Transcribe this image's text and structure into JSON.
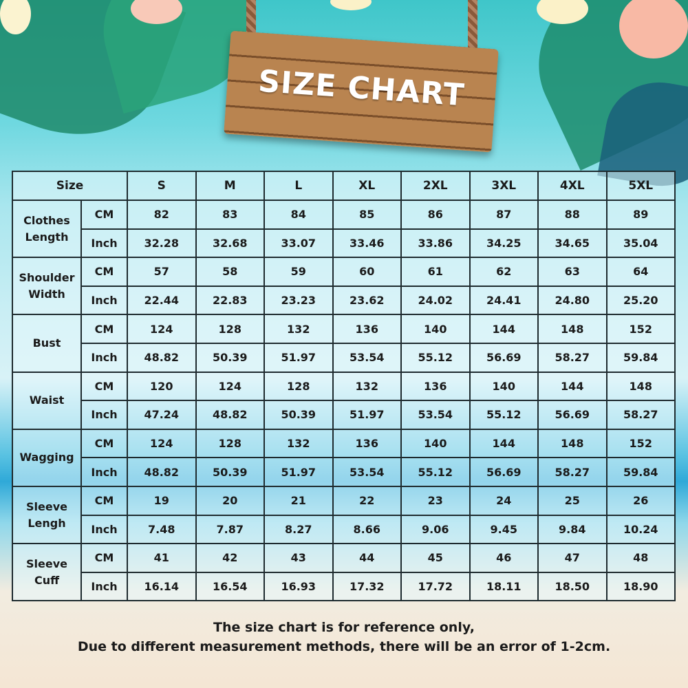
{
  "title": "SIZE CHART",
  "size_label": "Size",
  "sizes": [
    "S",
    "M",
    "L",
    "XL",
    "2XL",
    "3XL",
    "4XL",
    "5XL"
  ],
  "units": {
    "cm": "CM",
    "inch": "Inch"
  },
  "rows": [
    {
      "label": [
        "Clothes",
        "Length"
      ],
      "cm": [
        "82",
        "83",
        "84",
        "85",
        "86",
        "87",
        "88",
        "89"
      ],
      "inch": [
        "32.28",
        "32.68",
        "33.07",
        "33.46",
        "33.86",
        "34.25",
        "34.65",
        "35.04"
      ]
    },
    {
      "label": [
        "Shoulder",
        "Width"
      ],
      "cm": [
        "57",
        "58",
        "59",
        "60",
        "61",
        "62",
        "63",
        "64"
      ],
      "inch": [
        "22.44",
        "22.83",
        "23.23",
        "23.62",
        "24.02",
        "24.41",
        "24.80",
        "25.20"
      ]
    },
    {
      "label": [
        "Bust"
      ],
      "cm": [
        "124",
        "128",
        "132",
        "136",
        "140",
        "144",
        "148",
        "152"
      ],
      "inch": [
        "48.82",
        "50.39",
        "51.97",
        "53.54",
        "55.12",
        "56.69",
        "58.27",
        "59.84"
      ]
    },
    {
      "label": [
        "Waist"
      ],
      "cm": [
        "120",
        "124",
        "128",
        "132",
        "136",
        "140",
        "144",
        "148"
      ],
      "inch": [
        "47.24",
        "48.82",
        "50.39",
        "51.97",
        "53.54",
        "55.12",
        "56.69",
        "58.27"
      ]
    },
    {
      "label": [
        "Wagging"
      ],
      "cm": [
        "124",
        "128",
        "132",
        "136",
        "140",
        "144",
        "148",
        "152"
      ],
      "inch": [
        "48.82",
        "50.39",
        "51.97",
        "53.54",
        "55.12",
        "56.69",
        "58.27",
        "59.84"
      ]
    },
    {
      "label": [
        "Sleeve",
        "Lengh"
      ],
      "cm": [
        "19",
        "20",
        "21",
        "22",
        "23",
        "24",
        "25",
        "26"
      ],
      "inch": [
        "7.48",
        "7.87",
        "8.27",
        "8.66",
        "9.06",
        "9.45",
        "9.84",
        "10.24"
      ]
    },
    {
      "label": [
        "Sleeve",
        "Cuff"
      ],
      "cm": [
        "41",
        "42",
        "43",
        "44",
        "45",
        "46",
        "47",
        "48"
      ],
      "inch": [
        "16.14",
        "16.54",
        "16.93",
        "17.32",
        "17.72",
        "18.11",
        "18.50",
        "18.90"
      ]
    }
  ],
  "footer": {
    "line1": "The size chart is for reference only,",
    "line2": "Due to different measurement methods, there will be an error of 1-2cm."
  }
}
